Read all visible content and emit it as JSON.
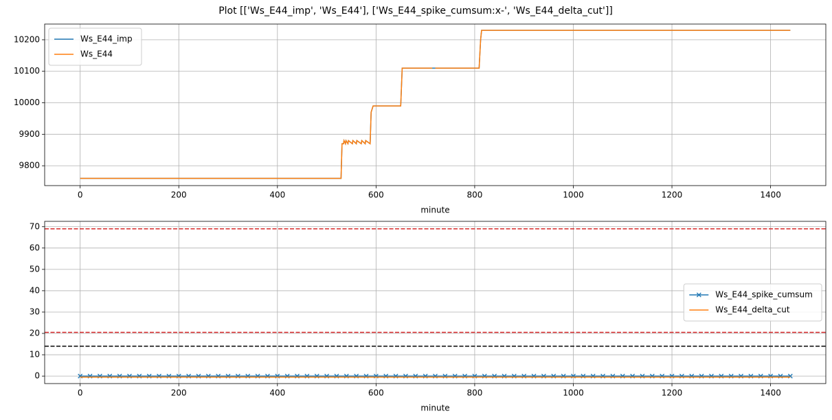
{
  "title": "Plot [['Ws_E44_imp', 'Ws_E44'], ['Ws_E44_spike_cumsum:x-', 'Ws_E44_delta_cut']]",
  "chart_data": [
    {
      "type": "line",
      "xlabel": "minute",
      "legend": "upper left",
      "grid": true,
      "xlim": [
        -72,
        1512
      ],
      "xticks": [
        0,
        200,
        400,
        600,
        800,
        1000,
        1200,
        1400
      ],
      "ylim": [
        9737,
        10250
      ],
      "yticks": [
        9800,
        9900,
        10000,
        10100,
        10200
      ],
      "x": [
        0,
        529,
        531,
        534,
        535,
        538,
        539,
        543,
        544,
        552,
        553,
        560,
        561,
        570,
        571,
        578,
        579,
        588,
        590,
        592,
        594,
        650,
        653,
        714,
        716,
        720,
        809,
        812,
        814,
        1440
      ],
      "series": [
        {
          "name": "Ws_E44_imp",
          "color": "#1f77b4",
          "values": [
            9760,
            9760,
            9870,
            9870,
            9880,
            9870,
            9880,
            9870,
            9880,
            9870,
            9880,
            9870,
            9880,
            9870,
            9880,
            9870,
            9880,
            9870,
            9970,
            9980,
            9990,
            9990,
            10110,
            10110,
            10110,
            10110,
            10110,
            10200,
            10230,
            10230
          ]
        },
        {
          "name": "Ws_E44",
          "color": "#ff7f0e",
          "values": [
            9760,
            9760,
            9870,
            9870,
            9880,
            9870,
            9880,
            9870,
            9880,
            9870,
            9880,
            9870,
            9880,
            9870,
            9880,
            9870,
            9880,
            9870,
            9970,
            9980,
            9990,
            9990,
            10110,
            10110,
            null,
            10110,
            10110,
            10200,
            10230,
            10230
          ]
        }
      ]
    },
    {
      "type": "line",
      "xlabel": "minute",
      "legend": "center right",
      "grid": true,
      "xlim": [
        -72,
        1512
      ],
      "xticks": [
        0,
        200,
        400,
        600,
        800,
        1000,
        1200,
        1400
      ],
      "ylim": [
        -3.5,
        72.5
      ],
      "yticks": [
        0,
        10,
        20,
        30,
        40,
        50,
        60,
        70
      ],
      "hlines": [
        {
          "value": 69,
          "color": "#d62728"
        },
        {
          "value": 20.5,
          "color": "#d62728"
        },
        {
          "value": 14,
          "color": "#000000"
        }
      ],
      "x": [
        0,
        20,
        40,
        60,
        80,
        100,
        120,
        140,
        160,
        180,
        200,
        220,
        240,
        260,
        280,
        300,
        320,
        340,
        360,
        380,
        400,
        420,
        440,
        460,
        480,
        500,
        520,
        540,
        560,
        580,
        600,
        620,
        640,
        660,
        680,
        700,
        720,
        740,
        760,
        780,
        800,
        820,
        840,
        860,
        880,
        900,
        920,
        940,
        960,
        980,
        1000,
        1020,
        1040,
        1060,
        1080,
        1100,
        1120,
        1140,
        1160,
        1180,
        1200,
        1220,
        1240,
        1260,
        1280,
        1300,
        1320,
        1340,
        1360,
        1380,
        1400,
        1420,
        1440
      ],
      "series": [
        {
          "name": "Ws_E44_spike_cumsum",
          "color": "#1f77b4",
          "marker": "x",
          "values": [
            0,
            0,
            0,
            0,
            0,
            0,
            0,
            0,
            0,
            0,
            0,
            0,
            0,
            0,
            0,
            0,
            0,
            0,
            0,
            0,
            0,
            0,
            0,
            0,
            0,
            0,
            0,
            0,
            0,
            0,
            0,
            0,
            0,
            0,
            0,
            0,
            0,
            0,
            0,
            0,
            0,
            0,
            0,
            0,
            0,
            0,
            0,
            0,
            0,
            0,
            0,
            0,
            0,
            0,
            0,
            0,
            0,
            0,
            0,
            0,
            0,
            0,
            0,
            0,
            0,
            0,
            0,
            0,
            0,
            0,
            0,
            0,
            0
          ]
        },
        {
          "name": "Ws_E44_delta_cut",
          "color": "#ff7f0e",
          "values": [
            -0.5,
            -0.5,
            -0.5,
            -0.5,
            -0.5,
            -0.5,
            -0.5,
            -0.5,
            -0.5,
            -0.5,
            -0.5,
            -0.5,
            -0.5,
            -0.5,
            -0.5,
            -0.5,
            -0.5,
            -0.5,
            -0.5,
            -0.5,
            -0.5,
            -0.5,
            -0.5,
            -0.5,
            -0.5,
            -0.5,
            -0.5,
            -0.5,
            -0.5,
            -0.5,
            -0.5,
            -0.5,
            -0.5,
            -0.5,
            -0.5,
            -0.5,
            -0.5,
            -0.5,
            -0.5,
            -0.5,
            -0.5,
            -0.5,
            -0.5,
            -0.5,
            -0.5,
            -0.5,
            -0.5,
            -0.5,
            -0.5,
            -0.5,
            -0.5,
            -0.5,
            -0.5,
            -0.5,
            -0.5,
            -0.5,
            -0.5,
            -0.5,
            -0.5,
            -0.5,
            -0.5,
            -0.5,
            -0.5,
            -0.5,
            -0.5,
            -0.5,
            -0.5,
            -0.5,
            -0.5,
            -0.5,
            -0.5,
            -0.5,
            -0.5
          ]
        }
      ]
    }
  ]
}
